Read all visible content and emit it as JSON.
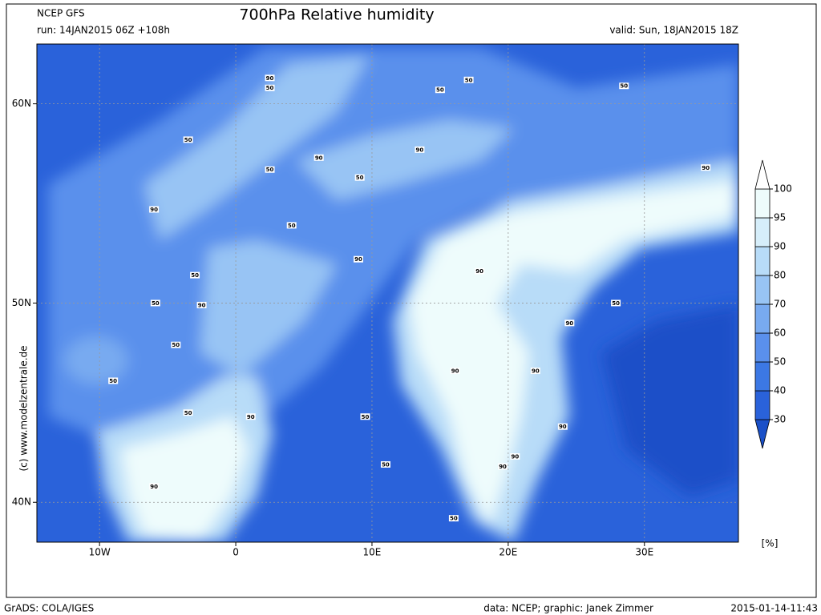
{
  "header": {
    "model": "NCEP GFS",
    "title": "700hPa Relative humidity",
    "run": "run: 14JAN2015 06Z +108h",
    "valid": "valid: Sun, 18JAN2015 18Z"
  },
  "map": {
    "lonlim": [
      -14.6,
      36.9
    ],
    "latlim": [
      38.0,
      63.0
    ],
    "lonticks": [
      {
        "value": -10,
        "label": "10W"
      },
      {
        "value": 0,
        "label": "0"
      },
      {
        "value": 10,
        "label": "10E"
      },
      {
        "value": 20,
        "label": "20E"
      },
      {
        "value": 30,
        "label": "30E"
      }
    ],
    "latticks": [
      {
        "value": 40,
        "label": "40N"
      },
      {
        "value": 50,
        "label": "50N"
      },
      {
        "value": 60,
        "label": "60N"
      }
    ],
    "contour_labels": [
      {
        "value": 90,
        "lon": 2.5,
        "lat": 61.3
      },
      {
        "value": 50,
        "lon": 2.5,
        "lat": 60.8
      },
      {
        "value": 50,
        "lon": 15.0,
        "lat": 60.7
      },
      {
        "value": 50,
        "lon": 17.1,
        "lat": 61.2
      },
      {
        "value": 50,
        "lon": 28.5,
        "lat": 60.9
      },
      {
        "value": 50,
        "lon": -3.5,
        "lat": 58.2
      },
      {
        "value": 90,
        "lon": 6.1,
        "lat": 57.3
      },
      {
        "value": 90,
        "lon": 13.5,
        "lat": 57.7
      },
      {
        "value": 50,
        "lon": 2.5,
        "lat": 56.7
      },
      {
        "value": 50,
        "lon": 9.1,
        "lat": 56.3
      },
      {
        "value": 90,
        "lon": 34.5,
        "lat": 56.8
      },
      {
        "value": 90,
        "lon": -6.0,
        "lat": 54.7
      },
      {
        "value": 50,
        "lon": 4.1,
        "lat": 53.9
      },
      {
        "value": 90,
        "lon": 9.0,
        "lat": 52.2
      },
      {
        "value": 50,
        "lon": -3.0,
        "lat": 51.4
      },
      {
        "value": 90,
        "lon": 17.9,
        "lat": 51.6
      },
      {
        "value": 50,
        "lon": -5.9,
        "lat": 50.0
      },
      {
        "value": 90,
        "lon": -2.5,
        "lat": 49.9
      },
      {
        "value": 50,
        "lon": 27.9,
        "lat": 50.0
      },
      {
        "value": 90,
        "lon": 24.5,
        "lat": 49.0
      },
      {
        "value": 50,
        "lon": -4.4,
        "lat": 47.9
      },
      {
        "value": 50,
        "lon": -9.0,
        "lat": 46.1
      },
      {
        "value": 90,
        "lon": 16.1,
        "lat": 46.6
      },
      {
        "value": 90,
        "lon": 22.0,
        "lat": 46.6
      },
      {
        "value": 50,
        "lon": -3.5,
        "lat": 44.5
      },
      {
        "value": 90,
        "lon": 1.1,
        "lat": 44.3
      },
      {
        "value": 50,
        "lon": 9.5,
        "lat": 44.3
      },
      {
        "value": 90,
        "lon": 24.0,
        "lat": 43.8
      },
      {
        "value": 90,
        "lon": 20.5,
        "lat": 42.3
      },
      {
        "value": 50,
        "lon": 11.0,
        "lat": 41.9
      },
      {
        "value": 90,
        "lon": 19.6,
        "lat": 41.8
      },
      {
        "value": 90,
        "lon": -6.0,
        "lat": 40.8
      },
      {
        "value": 50,
        "lon": 16.0,
        "lat": 39.2
      }
    ]
  },
  "colorbar": {
    "levels": [
      30,
      40,
      50,
      60,
      70,
      80,
      90,
      95,
      100
    ],
    "colors": [
      "#1a50c8",
      "#2a62da",
      "#3c78e4",
      "#5a90ec",
      "#78aaf0",
      "#98c4f4",
      "#b8dcf8",
      "#d6eefa",
      "#eefcfc",
      "#ffffff"
    ],
    "unit": "[%]"
  },
  "credit": "(c) www.modelzentrale.de",
  "footer": {
    "software": "GrADS: COLA/IGES",
    "source": "data: NCEP; graphic: Janek Zimmer",
    "timestamp": "2015-01-14-11:43"
  }
}
